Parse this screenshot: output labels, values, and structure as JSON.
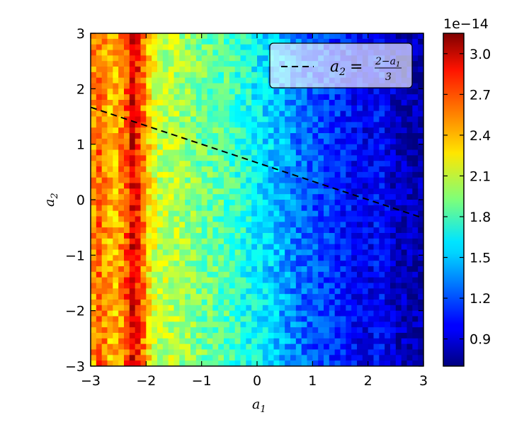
{
  "chart_data": {
    "type": "heatmap",
    "title": "",
    "xlabel": "a1",
    "ylabel": "a2",
    "xlim": [
      -3,
      3
    ],
    "ylim": [
      -3,
      3
    ],
    "x_ticks": [
      -3,
      -2,
      -1,
      0,
      1,
      2,
      3
    ],
    "y_ticks": [
      -3,
      -2,
      -1,
      0,
      1,
      2,
      3
    ],
    "x_tick_labels": [
      "−3",
      "−2",
      "−1",
      "0",
      "1",
      "2",
      "3"
    ],
    "y_tick_labels": [
      "−3",
      "−2",
      "−1",
      "0",
      "1",
      "2",
      "3"
    ],
    "grid": {
      "x_bins": 60,
      "y_bins": 60
    },
    "x_profile": {
      "x": [
        -3.0,
        -2.9,
        -2.6,
        -2.4,
        -2.25,
        -2.1,
        -2.0,
        -1.8,
        -1.5,
        -1.0,
        -0.5,
        0.0,
        0.4,
        0.7,
        1.0,
        1.3,
        1.6,
        2.0,
        2.2,
        2.5,
        2.9,
        3.0
      ],
      "value": [
        2.3,
        2.65,
        2.35,
        2.55,
        2.9,
        2.75,
        2.35,
        2.1,
        2.05,
        1.9,
        1.8,
        1.6,
        1.45,
        1.3,
        1.2,
        1.15,
        1.05,
        0.95,
        1.05,
        0.85,
        0.8,
        0.8
      ]
    },
    "value_unit": "1e-14",
    "colorbar": {
      "min": 0.7,
      "max": 3.15,
      "ticks": [
        0.9,
        1.2,
        1.5,
        1.8,
        2.1,
        2.4,
        2.7,
        3.0
      ],
      "tick_labels": [
        "0.9",
        "1.2",
        "1.5",
        "1.8",
        "2.1",
        "2.4",
        "2.7",
        "3.0"
      ],
      "offset_label": "1e−14",
      "colormap": "jet"
    },
    "line_series": [
      {
        "name": "a2 = (2 − a1) / 3",
        "style": "dashed",
        "color": "#000000",
        "x": [
          -3,
          3
        ],
        "y": [
          1.6667,
          -0.3333
        ]
      }
    ],
    "legend": {
      "placement": "top-right",
      "line_symbol": "a",
      "line_subscript": "2",
      "equals": "=",
      "numerator": "2−a",
      "numerator_subscript": "1",
      "denominator": "3"
    },
    "axis_labels": {
      "x_symbol": "a",
      "x_subscript": "1",
      "y_symbol": "a",
      "y_subscript": "2"
    }
  }
}
